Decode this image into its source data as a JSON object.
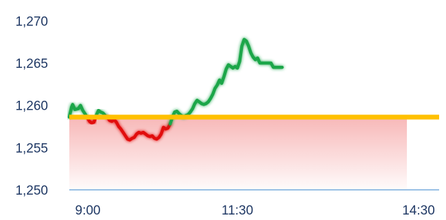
{
  "chart_data": {
    "type": "line",
    "title": "",
    "xlabel": "",
    "ylabel": "",
    "x_ticks": [
      {
        "value": 0,
        "label": "9:00"
      },
      {
        "value": 150,
        "label": "11:30"
      },
      {
        "value": 330,
        "label": "14:30"
      }
    ],
    "y_ticks": [
      {
        "value": 1250,
        "label": "1,250"
      },
      {
        "value": 1255,
        "label": "1,255"
      },
      {
        "value": 1260,
        "label": "1,260"
      },
      {
        "value": 1265,
        "label": "1,265"
      },
      {
        "value": 1270,
        "label": "1,270"
      }
    ],
    "xlim": [
      0,
      330
    ],
    "ylim": [
      1250,
      1271
    ],
    "reference_line": {
      "value": 1258.6,
      "color": "#FFC000"
    },
    "colors": {
      "above": "#1AA64A",
      "below": "#E11010",
      "below_fill": "#F5A0A0",
      "axis_line": "#5B9BD5",
      "tick_text": "#1F3864"
    },
    "grid": false,
    "legend": "none",
    "x_unit": "minutes since 9:00",
    "series": [
      {
        "values": [
          [
            0,
            1258.6
          ],
          [
            2,
            1259.8
          ],
          [
            3,
            1260.1
          ],
          [
            5,
            1259.5
          ],
          [
            8,
            1259.6
          ],
          [
            10,
            1260.0
          ],
          [
            12,
            1259.4
          ],
          [
            14,
            1259.0
          ],
          [
            16,
            1258.6
          ],
          [
            18,
            1258.1
          ],
          [
            20,
            1257.9
          ],
          [
            22,
            1258.0
          ],
          [
            24,
            1258.8
          ],
          [
            26,
            1259.4
          ],
          [
            28,
            1259.2
          ],
          [
            30,
            1259.1
          ],
          [
            32,
            1258.8
          ],
          [
            34,
            1258.6
          ],
          [
            36,
            1258.2
          ],
          [
            38,
            1258.1
          ],
          [
            40,
            1258.3
          ],
          [
            42,
            1258.0
          ],
          [
            44,
            1257.5
          ],
          [
            46,
            1257.2
          ],
          [
            48,
            1256.8
          ],
          [
            50,
            1256.4
          ],
          [
            52,
            1256.0
          ],
          [
            54,
            1255.9
          ],
          [
            56,
            1256.1
          ],
          [
            58,
            1256.2
          ],
          [
            60,
            1256.6
          ],
          [
            62,
            1256.8
          ],
          [
            64,
            1256.7
          ],
          [
            66,
            1256.8
          ],
          [
            68,
            1256.6
          ],
          [
            70,
            1256.4
          ],
          [
            72,
            1256.3
          ],
          [
            74,
            1256.4
          ],
          [
            76,
            1256.1
          ],
          [
            78,
            1256.0
          ],
          [
            80,
            1256.2
          ],
          [
            82,
            1256.6
          ],
          [
            84,
            1257.4
          ],
          [
            86,
            1257.2
          ],
          [
            88,
            1257.3
          ],
          [
            90,
            1257.8
          ],
          [
            92,
            1258.6
          ],
          [
            94,
            1259.2
          ],
          [
            96,
            1259.3
          ],
          [
            98,
            1259.0
          ],
          [
            100,
            1258.8
          ],
          [
            102,
            1258.6
          ],
          [
            104,
            1258.8
          ],
          [
            106,
            1258.9
          ],
          [
            108,
            1259.2
          ],
          [
            110,
            1259.6
          ],
          [
            112,
            1260.2
          ],
          [
            114,
            1260.6
          ],
          [
            116,
            1260.4
          ],
          [
            118,
            1260.2
          ],
          [
            120,
            1260.1
          ],
          [
            122,
            1260.2
          ],
          [
            124,
            1260.4
          ],
          [
            126,
            1260.8
          ],
          [
            128,
            1261.3
          ],
          [
            130,
            1262.0
          ],
          [
            132,
            1262.4
          ],
          [
            134,
            1263.0
          ],
          [
            136,
            1262.6
          ],
          [
            138,
            1263.4
          ],
          [
            140,
            1264.3
          ],
          [
            142,
            1264.8
          ],
          [
            144,
            1264.6
          ],
          [
            146,
            1264.4
          ],
          [
            148,
            1264.6
          ],
          [
            150,
            1264.4
          ],
          [
            152,
            1265.2
          ],
          [
            154,
            1267.0
          ],
          [
            156,
            1267.8
          ],
          [
            158,
            1267.6
          ],
          [
            160,
            1267.0
          ],
          [
            162,
            1266.2
          ],
          [
            164,
            1265.7
          ],
          [
            166,
            1265.4
          ],
          [
            168,
            1265.6
          ],
          [
            170,
            1265.0
          ],
          [
            172,
            1265.0
          ],
          [
            174,
            1265.0
          ],
          [
            176,
            1265.0
          ],
          [
            180,
            1265.0
          ],
          [
            182,
            1264.5
          ],
          [
            190,
            1264.5
          ]
        ]
      }
    ]
  }
}
